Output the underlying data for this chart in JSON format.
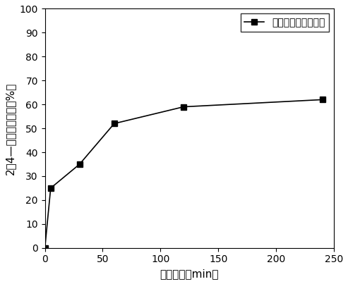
{
  "x": [
    0,
    5,
    30,
    60,
    120,
    240
  ],
  "y": [
    0,
    25,
    35,
    52,
    59,
    62
  ],
  "xlabel": "反应时间（min）",
  "ylabel": "2，4—二氯酚降解率（%）",
  "legend_label": "复合零价铁脱氯药剂",
  "xlim": [
    0,
    250
  ],
  "ylim": [
    0,
    100
  ],
  "xticks": [
    0,
    50,
    100,
    150,
    200,
    250
  ],
  "yticks": [
    0,
    10,
    20,
    30,
    40,
    50,
    60,
    70,
    80,
    90,
    100
  ],
  "line_color": "#000000",
  "marker": "s",
  "marker_size": 6,
  "line_width": 1.2,
  "background_color": "#ffffff",
  "legend_fontsize": 10,
  "axis_label_fontsize": 11,
  "tick_fontsize": 10
}
